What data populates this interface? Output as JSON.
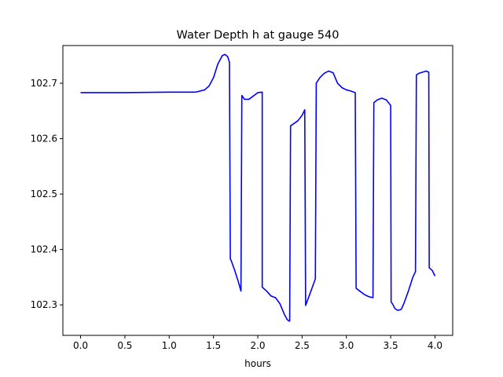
{
  "chart_data": {
    "type": "line",
    "title": "Water Depth h at gauge 540",
    "xlabel": "hours",
    "ylabel": "",
    "xlim": [
      -0.2,
      4.2
    ],
    "ylim": [
      102.245,
      102.768
    ],
    "xticks": [
      0.0,
      0.5,
      1.0,
      1.5,
      2.0,
      2.5,
      3.0,
      3.5,
      4.0
    ],
    "xtick_labels": [
      "0.0",
      "0.5",
      "1.0",
      "1.5",
      "2.0",
      "2.5",
      "3.0",
      "3.5",
      "4.0"
    ],
    "yticks": [
      102.3,
      102.4,
      102.5,
      102.6,
      102.7
    ],
    "ytick_labels": [
      "102.3",
      "102.4",
      "102.5",
      "102.6",
      "102.7"
    ],
    "grid": false,
    "series": [
      {
        "color": "#0000ff",
        "x": [
          0.0,
          0.5,
          1.0,
          1.3,
          1.4,
          1.45,
          1.5,
          1.55,
          1.6,
          1.63,
          1.66,
          1.68,
          1.69,
          1.7,
          1.74,
          1.78,
          1.81,
          1.82,
          1.85,
          1.9,
          1.95,
          2.0,
          2.05,
          2.05,
          2.1,
          2.15,
          2.2,
          2.25,
          2.3,
          2.33,
          2.35,
          2.36,
          2.37,
          2.45,
          2.5,
          2.53,
          2.54,
          2.6,
          2.65,
          2.66,
          2.7,
          2.75,
          2.8,
          2.85,
          2.9,
          2.95,
          3.0,
          3.05,
          3.1,
          3.11,
          3.15,
          3.2,
          3.25,
          3.3,
          3.31,
          3.35,
          3.4,
          3.45,
          3.5,
          3.505,
          3.52,
          3.55,
          3.58,
          3.62,
          3.65,
          3.7,
          3.75,
          3.78,
          3.79,
          3.82,
          3.86,
          3.9,
          3.93,
          3.935,
          3.97,
          4.0
        ],
        "y": [
          102.683,
          102.683,
          102.684,
          102.684,
          102.688,
          102.695,
          102.71,
          102.735,
          102.75,
          102.752,
          102.748,
          102.738,
          102.383,
          102.38,
          102.362,
          102.342,
          102.325,
          102.678,
          102.671,
          102.671,
          102.677,
          102.683,
          102.684,
          102.332,
          102.325,
          102.316,
          102.313,
          102.302,
          102.283,
          102.274,
          102.271,
          102.271,
          102.623,
          102.632,
          102.642,
          102.652,
          102.299,
          102.325,
          102.347,
          102.7,
          102.71,
          102.718,
          102.722,
          102.719,
          102.7,
          102.692,
          102.688,
          102.686,
          102.683,
          102.33,
          102.325,
          102.319,
          102.315,
          102.313,
          102.665,
          102.67,
          102.673,
          102.67,
          102.66,
          102.305,
          102.302,
          102.293,
          102.29,
          102.292,
          102.303,
          102.325,
          102.35,
          102.36,
          102.715,
          102.718,
          102.72,
          102.722,
          102.72,
          102.367,
          102.362,
          102.352
        ]
      }
    ]
  }
}
